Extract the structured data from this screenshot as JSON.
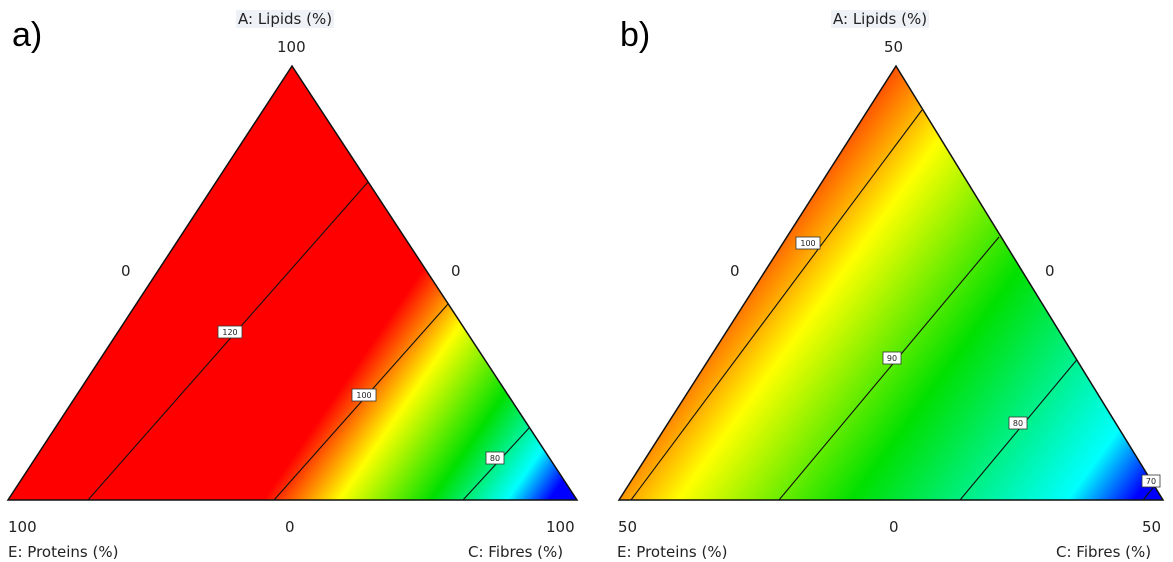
{
  "chart_data": [
    {
      "type": "ternary-contour",
      "panel_label": "a)",
      "axes": {
        "top": {
          "label": "A: Lipids (%)",
          "max": "100",
          "min": "0"
        },
        "left": {
          "label": "E: Proteins (%)",
          "max": "100",
          "min": "0"
        },
        "right": {
          "label": "C: Fibres (%)",
          "max": "100",
          "min": "0"
        }
      },
      "contours": [
        {
          "level": 120,
          "label": "120"
        },
        {
          "level": 100,
          "label": "100"
        },
        {
          "level": 80,
          "label": "80"
        }
      ],
      "colors": {
        "high": "#ff0000",
        "mid_high": "#ffff00",
        "mid": "#00e000",
        "mid_low": "#00ffff",
        "low": "#0000ff"
      }
    },
    {
      "type": "ternary-contour",
      "panel_label": "b)",
      "axes": {
        "top": {
          "label": "A: Lipids (%)",
          "max": "50",
          "min": "0"
        },
        "left": {
          "label": "E: Proteins (%)",
          "max": "50",
          "min": "0"
        },
        "right": {
          "label": "C: Fibres (%)",
          "max": "50",
          "min": "0"
        }
      },
      "contours": [
        {
          "level": 100,
          "label": "100"
        },
        {
          "level": 90,
          "label": "90"
        },
        {
          "level": 80,
          "label": "80"
        },
        {
          "level": 70,
          "label": "70"
        }
      ],
      "colors": {
        "high": "#ff0000",
        "mid_high": "#ffff00",
        "mid": "#00e000",
        "mid_low": "#00ffff",
        "low": "#0000ff"
      }
    }
  ]
}
